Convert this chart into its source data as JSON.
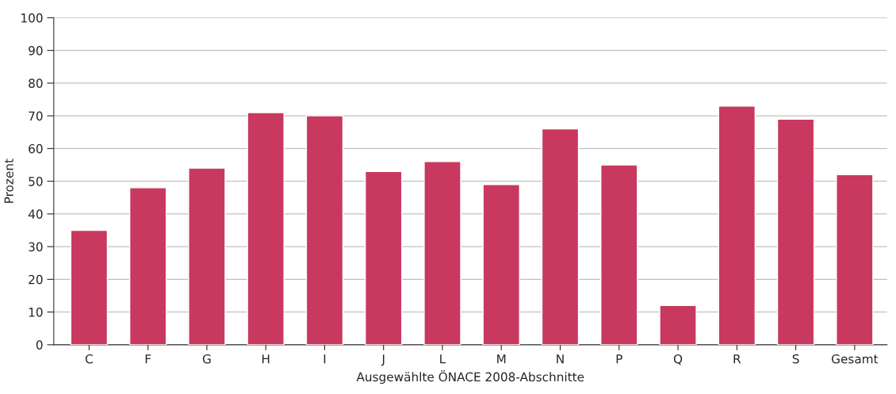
{
  "chart_data": {
    "type": "bar",
    "xlabel": "Ausgewählte ÖNACE 2008-Abschnitte",
    "ylabel": "Prozent",
    "categories": [
      "C",
      "F",
      "G",
      "H",
      "I",
      "J",
      "L",
      "M",
      "N",
      "P",
      "Q",
      "R",
      "S",
      "Gesamt"
    ],
    "values": [
      35,
      48,
      54,
      71,
      70,
      53,
      56,
      49,
      66,
      55,
      12,
      73,
      69,
      52
    ],
    "color": "#c8385f",
    "ylim": [
      0,
      100
    ],
    "yticks": [
      0,
      10,
      20,
      30,
      40,
      50,
      60,
      70,
      80,
      90,
      100
    ],
    "grid": "y"
  }
}
